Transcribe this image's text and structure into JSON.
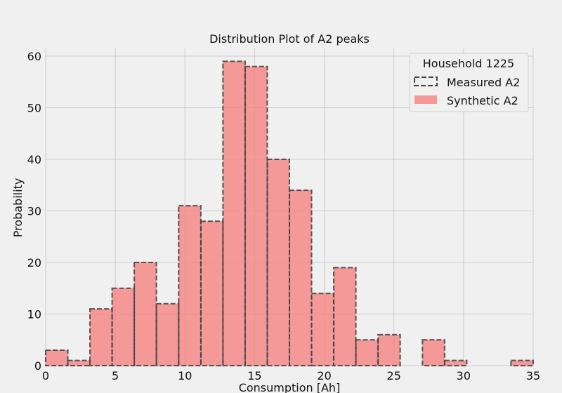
{
  "chart_data": {
    "type": "bar",
    "title": "Distribution Plot of A2 peaks",
    "xlabel": "Consumption [Ah]",
    "ylabel": "Probability",
    "xlim": [
      0,
      35
    ],
    "ylim": [
      0,
      61.5
    ],
    "xticks": [
      "0",
      "5",
      "10",
      "15",
      "20",
      "25",
      "30",
      "35"
    ],
    "yticks": [
      "0",
      "10",
      "20",
      "30",
      "40",
      "50",
      "60"
    ],
    "grid": true,
    "bin_edges": [
      0.0,
      1.59,
      3.18,
      4.77,
      6.36,
      7.95,
      9.55,
      11.14,
      12.73,
      14.32,
      15.91,
      17.5,
      19.09,
      20.68,
      22.27,
      23.86,
      25.45,
      27.05,
      28.64,
      30.23,
      31.82,
      33.41,
      35.0
    ],
    "series": [
      {
        "name": "Measured A2",
        "style": "dashed-outline",
        "color": "#444444",
        "values": [
          3,
          1,
          11,
          15,
          20,
          12,
          31,
          28,
          59,
          58,
          40,
          34,
          14,
          19,
          5,
          6,
          0,
          5,
          1,
          0,
          0,
          1
        ]
      },
      {
        "name": "Synthetic A2",
        "style": "filled",
        "color": "#f77b7b",
        "values": [
          3,
          1,
          11,
          15,
          20,
          12,
          31,
          28,
          59,
          58,
          40,
          34,
          14,
          19,
          5,
          6,
          0,
          5,
          1,
          0,
          0,
          1
        ]
      }
    ],
    "legend": {
      "title": "Household 1225",
      "position": "top-right"
    }
  }
}
